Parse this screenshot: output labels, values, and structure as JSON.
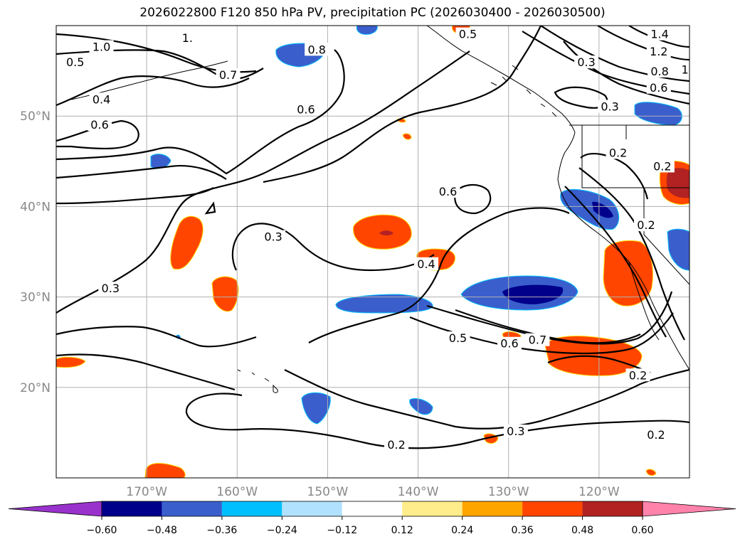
{
  "title": "2026022800 F120 850 hPa PV, precipitation PC (2026030400 - 2026030500)",
  "map": {
    "lon_range": [
      -180,
      -110
    ],
    "lat_range": [
      10,
      60
    ],
    "lon_ticks": [
      {
        "value": -170,
        "label": "170°W"
      },
      {
        "value": -160,
        "label": "160°W"
      },
      {
        "value": -150,
        "label": "150°W"
      },
      {
        "value": -140,
        "label": "140°W"
      },
      {
        "value": -130,
        "label": "130°W"
      },
      {
        "value": -120,
        "label": "120°W"
      }
    ],
    "lat_ticks": [
      {
        "value": 50,
        "label": "50°N"
      },
      {
        "value": 40,
        "label": "40°N"
      },
      {
        "value": 30,
        "label": "30°N"
      },
      {
        "value": 20,
        "label": "20°N"
      }
    ],
    "grid": true,
    "contour_labels": [
      {
        "text": "1.0",
        "lon": -175,
        "lat": 57.6
      },
      {
        "text": "0.5",
        "lon": -177.9,
        "lat": 55.9
      },
      {
        "text": "0.7",
        "lon": -161,
        "lat": 54.5
      },
      {
        "text": "0.8",
        "lon": -151.2,
        "lat": 57.3
      },
      {
        "text": "0.4",
        "lon": -175,
        "lat": 51.8
      },
      {
        "text": "0.6",
        "lon": -175.2,
        "lat": 49.0
      },
      {
        "text": "0.6",
        "lon": -152.4,
        "lat": 50.7
      },
      {
        "text": "0.6",
        "lon": -136.7,
        "lat": 41.6
      },
      {
        "text": "0.3",
        "lon": -156,
        "lat": 36.6
      },
      {
        "text": "0.3",
        "lon": -174,
        "lat": 30.9
      },
      {
        "text": "0.4",
        "lon": -139.1,
        "lat": 33.6
      },
      {
        "text": "0.5",
        "lon": -135.6,
        "lat": 25.4
      },
      {
        "text": "0.6",
        "lon": -129.9,
        "lat": 24.8
      },
      {
        "text": "0.7",
        "lon": -126.8,
        "lat": 25.2
      },
      {
        "text": "0.2",
        "lon": -142.4,
        "lat": 13.6
      },
      {
        "text": "0.3",
        "lon": -129.2,
        "lat": 15.1
      },
      {
        "text": "0.2",
        "lon": -115.7,
        "lat": 21.3
      },
      {
        "text": "0.2",
        "lon": -113.7,
        "lat": 14.7
      },
      {
        "text": "0.3",
        "lon": -121.4,
        "lat": 55.9
      },
      {
        "text": "0.3",
        "lon": -118.8,
        "lat": 51.0
      },
      {
        "text": "0.2",
        "lon": -117.9,
        "lat": 45.9
      },
      {
        "text": "0.2",
        "lon": -114.8,
        "lat": 37.9
      },
      {
        "text": "0.2",
        "lon": -113.0,
        "lat": 44.4
      },
      {
        "text": "0.5",
        "lon": -134.5,
        "lat": 59.0
      },
      {
        "text": "1.4",
        "lon": -113.3,
        "lat": 59.0
      },
      {
        "text": "1.2",
        "lon": -113.4,
        "lat": 57.1
      },
      {
        "text": "0.8",
        "lon": -113.3,
        "lat": 54.9
      },
      {
        "text": "0.6",
        "lon": -113.4,
        "lat": 53.1
      },
      {
        "text": "1.",
        "lon": -110.3,
        "lat": 55.1
      },
      {
        "text": "1.",
        "lon": -165.5,
        "lat": 58.6
      }
    ],
    "colors": {
      "contour": "#000000",
      "grid": "#b0b0b0",
      "coast": "#000000"
    }
  },
  "colorbar": {
    "levels": [
      "-0.60",
      "-0.48",
      "-0.36",
      "-0.24",
      "-0.12",
      "0.12",
      "0.24",
      "0.36",
      "0.48",
      "0.60"
    ],
    "colors": [
      "#9932cc",
      "#00008b",
      "#3a5fcd",
      "#00bfff",
      "#b0e2ff",
      "#ffffff",
      "#ffec8b",
      "#ffa500",
      "#ff4500",
      "#b22222",
      "#ff82ab"
    ],
    "extend": "both"
  }
}
